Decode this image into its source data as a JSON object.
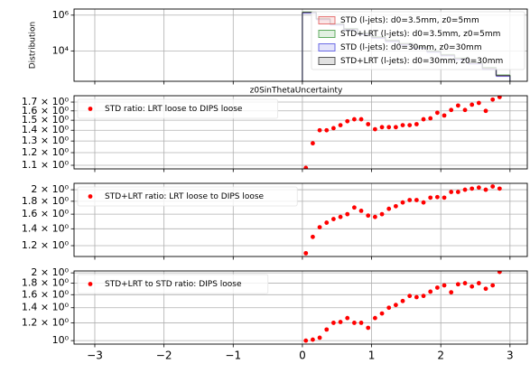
{
  "chart_data": [
    {
      "type": "histogram",
      "ylabel": "Distribution",
      "xlabel": "z0SinThetaUncertainty",
      "log_y": true,
      "grid": true,
      "legend": "upper right",
      "show_xtick_labels": false,
      "xlim": [
        -3.3,
        3.25
      ],
      "xticks": [
        -3,
        -2,
        -1,
        0,
        1,
        2,
        3
      ],
      "ylim": [
        200,
        2200000
      ],
      "yticks": [
        {
          "value": 10000,
          "label": "10⁴"
        },
        {
          "value": 1000000,
          "label": "10⁶"
        }
      ],
      "bins": [
        0,
        0.2,
        0.4,
        0.6,
        0.8,
        1.0,
        1.2,
        1.4,
        1.6,
        1.8,
        2.0,
        2.2,
        2.4,
        2.6,
        2.8,
        3.0
      ],
      "series": [
        {
          "name": "STD (l-jets): d0=3.5mm, z0=5mm",
          "color": "#e05555",
          "values": [
            1400000,
            600000,
            300000,
            160000,
            90000,
            55000,
            35000,
            23000,
            15000,
            9000,
            5600,
            3500,
            2000,
            1000,
            400
          ]
        },
        {
          "name": "STD+LRT (l-jets): d0=3.5mm, z0=5mm",
          "color": "#3d9a3d",
          "values": [
            1500000,
            650000,
            330000,
            180000,
            100000,
            62000,
            40000,
            26000,
            17000,
            10000,
            6300,
            4000,
            2300,
            1200,
            450
          ]
        },
        {
          "name": "STD (l-jets): d0=30mm, z0=30mm",
          "color": "#4a4ae0",
          "values": [
            1300000,
            560000,
            280000,
            150000,
            85000,
            52000,
            33000,
            22000,
            14000,
            8500,
            5300,
            3300,
            1900,
            950,
            380
          ]
        },
        {
          "name": "STD+LRT (l-jets): d0=30mm, z0=30mm",
          "color": "#333333",
          "values": [
            1450000,
            620000,
            320000,
            170000,
            95000,
            58000,
            38000,
            25000,
            16000,
            9500,
            6000,
            3800,
            2200,
            1100,
            420
          ]
        }
      ]
    },
    {
      "type": "scatter",
      "log_y": true,
      "grid": true,
      "legend": "upper left",
      "show_xtick_labels": false,
      "xlim": [
        -3.3,
        3.25
      ],
      "xticks": [
        -3,
        -2,
        -1,
        0,
        1,
        2,
        3
      ],
      "ylim": [
        1.073,
        1.776
      ],
      "yticks": [
        {
          "value": 1.1,
          "label": "1.1 × 10⁰"
        },
        {
          "value": 1.2,
          "label": "1.2 × 10⁰"
        },
        {
          "value": 1.3,
          "label": "1.3 × 10⁰"
        },
        {
          "value": 1.4,
          "label": "1.4 × 10⁰"
        },
        {
          "value": 1.5,
          "label": "1.5 × 10⁰"
        },
        {
          "value": 1.6,
          "label": "1.6 × 10⁰"
        },
        {
          "value": 1.7,
          "label": "1.7 × 10⁰"
        }
      ],
      "x": [
        0.05,
        0.15,
        0.25,
        0.35,
        0.45,
        0.55,
        0.65,
        0.75,
        0.85,
        0.95,
        1.05,
        1.15,
        1.25,
        1.35,
        1.45,
        1.55,
        1.65,
        1.75,
        1.85,
        1.95,
        2.05,
        2.15,
        2.25,
        2.35,
        2.45,
        2.55,
        2.65,
        2.75,
        2.85
      ],
      "series": [
        {
          "name": "STD ratio: LRT loose to DIPS loose",
          "color": "#ff0000",
          "values": [
            1.08,
            1.28,
            1.4,
            1.4,
            1.42,
            1.45,
            1.49,
            1.51,
            1.51,
            1.46,
            1.41,
            1.43,
            1.43,
            1.43,
            1.45,
            1.45,
            1.46,
            1.51,
            1.52,
            1.58,
            1.55,
            1.61,
            1.66,
            1.61,
            1.67,
            1.69,
            1.6,
            1.73,
            1.76
          ]
        }
      ]
    },
    {
      "type": "scatter",
      "log_y": true,
      "grid": true,
      "legend": "upper left",
      "show_xtick_labels": false,
      "xlim": [
        -3.3,
        3.25
      ],
      "xticks": [
        -3,
        -2,
        -1,
        0,
        1,
        2,
        3
      ],
      "ylim": [
        1.087,
        2.12
      ],
      "yticks": [
        {
          "value": 1.2,
          "label": "1.2 × 10⁰"
        },
        {
          "value": 1.4,
          "label": "1.4 × 10⁰"
        },
        {
          "value": 1.6,
          "label": "1.6 × 10⁰"
        },
        {
          "value": 1.8,
          "label": "1.8 × 10⁰"
        },
        {
          "value": 2,
          "label": "2 × 10⁰"
        }
      ],
      "x": [
        0.05,
        0.15,
        0.25,
        0.35,
        0.45,
        0.55,
        0.65,
        0.75,
        0.85,
        0.95,
        1.05,
        1.15,
        1.25,
        1.35,
        1.45,
        1.55,
        1.65,
        1.75,
        1.85,
        1.95,
        2.05,
        2.15,
        2.25,
        2.35,
        2.45,
        2.55,
        2.65,
        2.75,
        2.85
      ],
      "series": [
        {
          "name": "STD+LRT ratio: LRT loose to DIPS loose",
          "color": "#ff0000",
          "values": [
            1.12,
            1.3,
            1.42,
            1.48,
            1.53,
            1.56,
            1.6,
            1.7,
            1.65,
            1.58,
            1.56,
            1.6,
            1.68,
            1.72,
            1.78,
            1.82,
            1.82,
            1.78,
            1.86,
            1.87,
            1.86,
            1.96,
            1.96,
            2.0,
            2.02,
            2.04,
            2.0,
            2.06,
            2.02
          ]
        }
      ]
    },
    {
      "type": "scatter",
      "log_y": true,
      "grid": true,
      "legend": "upper left",
      "show_xtick_labels": true,
      "xlim": [
        -3.3,
        3.25
      ],
      "xticks": [
        {
          "value": -3,
          "label": "−3"
        },
        {
          "value": -2,
          "label": "−2"
        },
        {
          "value": -1,
          "label": "−1"
        },
        0,
        1,
        2,
        3
      ],
      "ylim": [
        0.965,
        2.04
      ],
      "yticks": [
        {
          "value": 1,
          "label": "10⁰"
        },
        {
          "value": 1.2,
          "label": "1.2 × 10⁰"
        },
        {
          "value": 1.4,
          "label": "1.4 × 10⁰"
        },
        {
          "value": 1.6,
          "label": "1.6 × 10⁰"
        },
        {
          "value": 1.8,
          "label": "1.8 × 10⁰"
        },
        {
          "value": 2,
          "label": "2 × 10⁰"
        }
      ],
      "x": [
        0.05,
        0.15,
        0.25,
        0.35,
        0.45,
        0.55,
        0.65,
        0.75,
        0.85,
        0.95,
        1.05,
        1.15,
        1.25,
        1.35,
        1.45,
        1.55,
        1.65,
        1.75,
        1.85,
        1.95,
        2.05,
        2.15,
        2.25,
        2.35,
        2.45,
        2.55,
        2.65,
        2.75,
        2.85
      ],
      "series": [
        {
          "name": "STD+LRT to STD ratio: DIPS loose",
          "color": "#ff0000",
          "values": [
            1.0,
            1.01,
            1.03,
            1.12,
            1.2,
            1.21,
            1.26,
            1.2,
            1.2,
            1.14,
            1.26,
            1.32,
            1.4,
            1.44,
            1.5,
            1.58,
            1.56,
            1.58,
            1.65,
            1.72,
            1.76,
            1.64,
            1.78,
            1.8,
            1.74,
            1.8,
            1.7,
            1.76,
            2.02
          ]
        }
      ]
    }
  ]
}
